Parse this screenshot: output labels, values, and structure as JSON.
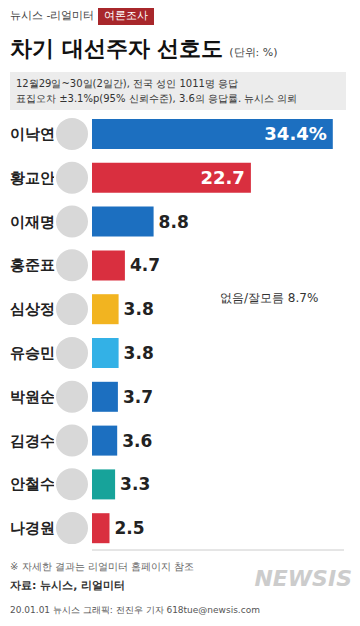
{
  "chart_data": {
    "type": "bar",
    "header": "뉴시스 -리얼미터",
    "tag": "여론조사",
    "title": "차기 대선주자 선호도",
    "subtitle": "(단위: %)",
    "notes": [
      "12월29일~30일(2일간), 전국 성인 1011명 응답",
      "표집오차 ±3.1%p(95% 신뢰수준), 3.6의 응답률. 뉴시스 의뢰"
    ],
    "categories": [
      "이낙연",
      "황교안",
      "이재명",
      "홍준표",
      "심상정",
      "유승민",
      "박원순",
      "김경수",
      "안철수",
      "나경원"
    ],
    "values": [
      34.4,
      22.7,
      8.8,
      4.7,
      3.8,
      3.8,
      3.7,
      3.6,
      3.3,
      2.5
    ],
    "value_labels": [
      "34.4%",
      "22.7",
      "8.8",
      "4.7",
      "3.8",
      "3.8",
      "3.7",
      "3.6",
      "3.3",
      "2.5"
    ],
    "colors": [
      "#1c6fc0",
      "#d92f3f",
      "#1c6fc0",
      "#d92f3f",
      "#f2b420",
      "#33b1e6",
      "#1c6fc0",
      "#1c6fc0",
      "#17a39a",
      "#d92f3f"
    ],
    "orientation": "horizontal",
    "data_labels": true,
    "tick_labels": "y",
    "xlim": [
      0,
      36
    ],
    "annotation": "없음/잘모름 8.7%",
    "footnote": "※ 자세한 결과는 리얼미터 홈페이지 참조",
    "source": "자료: 뉴시스, 리얼미터",
    "credit": "20.01.01 뉴시스 그래픽: 전진우 기자 618tue@newsis.com",
    "watermark": "NEWSIS"
  }
}
